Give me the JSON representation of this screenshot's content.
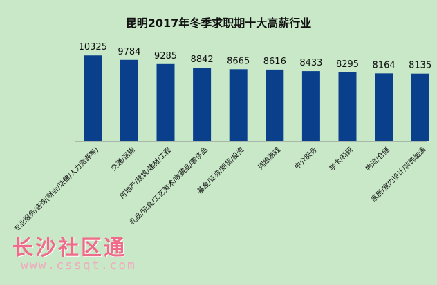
{
  "chart_data": {
    "type": "bar",
    "title": "昆明2017年冬季求职期十大高薪行业",
    "categories": [
      "专业服务/咨询(财会/法律/人力资源等)",
      "交通/运输",
      "房地产/建筑/建材/工程",
      "礼品/玩具/工艺美术/收藏品/奢侈品",
      "基金/证券/期货/投资",
      "网络游戏",
      "中介服务",
      "学术/科研",
      "物流/仓储",
      "家居/室内设计/装饰装潢"
    ],
    "values": [
      10325,
      9784,
      9285,
      8842,
      8665,
      8616,
      8433,
      8295,
      8164,
      8135
    ],
    "ylim": [
      0,
      12000
    ],
    "xlabel": "",
    "ylabel": "",
    "grid": false,
    "legend": "none",
    "bar_color": "#0a3f8c"
  },
  "watermark": {
    "name": "长沙社区通",
    "url": "www.cssqt.com"
  }
}
